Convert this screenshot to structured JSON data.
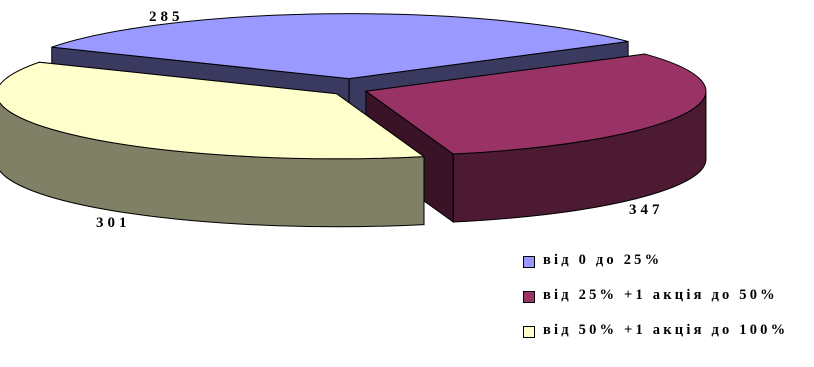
{
  "chart_data": {
    "type": "pie",
    "values": [
      301,
      285,
      347
    ],
    "categories": [
      "від 0 до 25%",
      "від 25% +1 акція до 50%",
      "від 50% +1 акція до 100%"
    ],
    "data_labels": [
      "301",
      "285",
      "347"
    ],
    "colors": [
      "#9999FF",
      "#993366",
      "#FFFFCC"
    ],
    "legend_position": "bottom-right",
    "title": "",
    "style": "3d-exploded"
  }
}
